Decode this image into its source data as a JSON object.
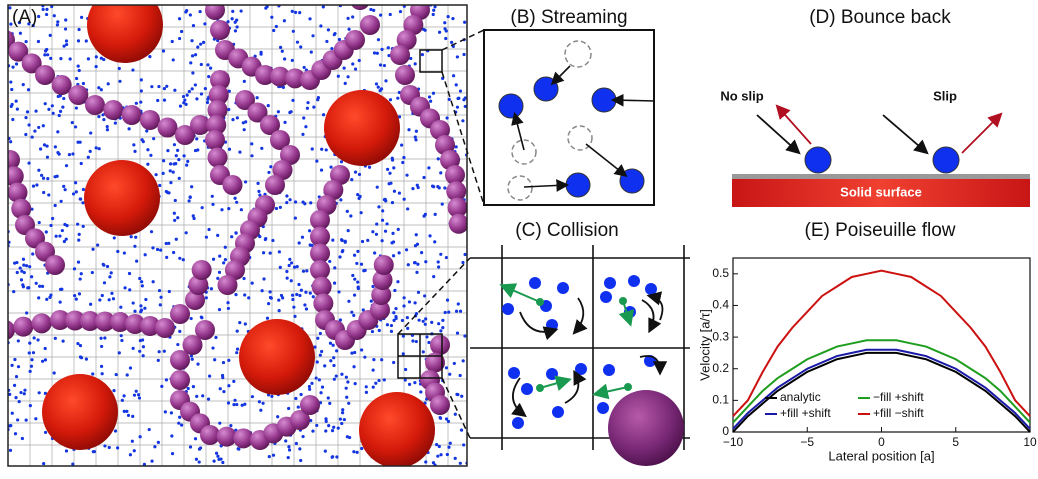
{
  "panels": {
    "a": {
      "label": "(A)"
    },
    "b": {
      "title": "(B) Streaming"
    },
    "c": {
      "title": "(C) Collision"
    },
    "d": {
      "title": "(D) Bounce back",
      "no_slip": "No slip",
      "slip": "Slip",
      "surface": "Solid surface"
    }
  },
  "chart_data": {
    "type": "line",
    "title": "(E) Poiseuille flow",
    "x_label": "Lateral position [a]",
    "y_label": "Velocity [a/τ]",
    "x": [
      -10,
      -9,
      -8,
      -7,
      -6,
      -5,
      -4,
      -3,
      -2,
      -1,
      0,
      1,
      2,
      3,
      4,
      5,
      6,
      7,
      8,
      9,
      10
    ],
    "series": [
      {
        "name": "analytic",
        "color": "#000000",
        "values": [
          0,
          0.05,
          0.09,
          0.13,
          0.16,
          0.19,
          0.21,
          0.23,
          0.24,
          0.25,
          0.25,
          0.25,
          0.24,
          0.23,
          0.21,
          0.19,
          0.16,
          0.13,
          0.09,
          0.05,
          0
        ]
      },
      {
        "name": "+fill +shift",
        "color": "#1a1aa8",
        "values": [
          0.01,
          0.06,
          0.1,
          0.14,
          0.17,
          0.2,
          0.22,
          0.24,
          0.25,
          0.26,
          0.26,
          0.26,
          0.25,
          0.24,
          0.22,
          0.2,
          0.17,
          0.14,
          0.1,
          0.06,
          0.01
        ]
      },
      {
        "name": "−fill +shift",
        "color": "#1e9e1e",
        "values": [
          0.03,
          0.08,
          0.13,
          0.17,
          0.2,
          0.23,
          0.25,
          0.27,
          0.28,
          0.29,
          0.29,
          0.29,
          0.28,
          0.27,
          0.25,
          0.23,
          0.2,
          0.17,
          0.13,
          0.08,
          0.03
        ]
      },
      {
        "name": "+fill −shift",
        "color": "#cc1111",
        "values": [
          0.05,
          0.1,
          0.19,
          0.27,
          0.33,
          0.38,
          0.43,
          0.46,
          0.49,
          0.5,
          0.51,
          0.5,
          0.49,
          0.46,
          0.43,
          0.38,
          0.33,
          0.27,
          0.19,
          0.1,
          0.05
        ]
      }
    ],
    "xlim": [
      -10,
      10
    ],
    "ylim": [
      0,
      0.55
    ],
    "xticks": [
      {
        "value": -10,
        "label": "−10"
      },
      {
        "value": -5,
        "label": "−5"
      },
      0,
      5,
      10
    ],
    "yticks": [
      0,
      0.1,
      0.2,
      0.3,
      0.4,
      0.5
    ],
    "legend": "lower-center"
  }
}
